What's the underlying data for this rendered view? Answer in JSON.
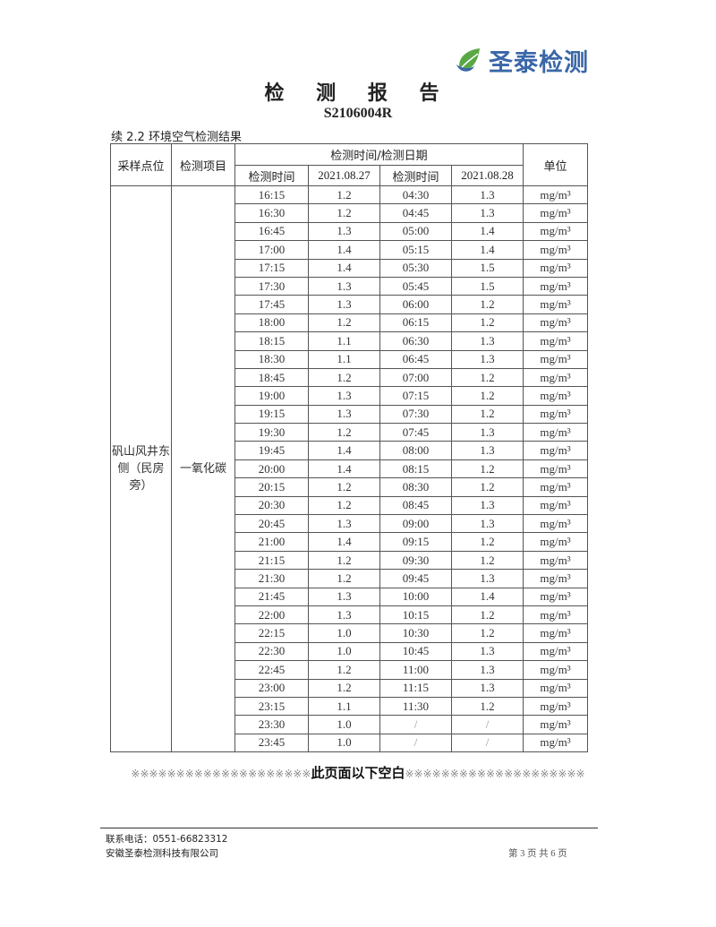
{
  "header": {
    "logo_text": "圣泰检测",
    "title": "检 测 报 告",
    "report_code": "S2106004R",
    "caption": "续 2.2 环境空气检测结果"
  },
  "table": {
    "headers": {
      "location": "采样点位",
      "item": "检测项目",
      "group": "检测时间/检测日期",
      "unit": "单位",
      "time1": "检测时间",
      "date1": "2021.08.27",
      "time2": "检测时间",
      "date2": "2021.08.28"
    },
    "location": "矾山风井东侧（民房旁）",
    "item": "一氧化碳",
    "unit": "mg/m³",
    "rows": [
      [
        "16:15",
        "1.2",
        "04:30",
        "1.3"
      ],
      [
        "16:30",
        "1.2",
        "04:45",
        "1.3"
      ],
      [
        "16:45",
        "1.3",
        "05:00",
        "1.4"
      ],
      [
        "17:00",
        "1.4",
        "05:15",
        "1.4"
      ],
      [
        "17:15",
        "1.4",
        "05:30",
        "1.5"
      ],
      [
        "17:30",
        "1.3",
        "05:45",
        "1.5"
      ],
      [
        "17:45",
        "1.3",
        "06:00",
        "1.2"
      ],
      [
        "18:00",
        "1.2",
        "06:15",
        "1.2"
      ],
      [
        "18:15",
        "1.1",
        "06:30",
        "1.3"
      ],
      [
        "18:30",
        "1.1",
        "06:45",
        "1.3"
      ],
      [
        "18:45",
        "1.2",
        "07:00",
        "1.2"
      ],
      [
        "19:00",
        "1.3",
        "07:15",
        "1.2"
      ],
      [
        "19:15",
        "1.3",
        "07:30",
        "1.2"
      ],
      [
        "19:30",
        "1.2",
        "07:45",
        "1.3"
      ],
      [
        "19:45",
        "1.4",
        "08:00",
        "1.3"
      ],
      [
        "20:00",
        "1.4",
        "08:15",
        "1.2"
      ],
      [
        "20:15",
        "1.2",
        "08:30",
        "1.2"
      ],
      [
        "20:30",
        "1.2",
        "08:45",
        "1.3"
      ],
      [
        "20:45",
        "1.3",
        "09:00",
        "1.3"
      ],
      [
        "21:00",
        "1.4",
        "09:15",
        "1.2"
      ],
      [
        "21:15",
        "1.2",
        "09:30",
        "1.2"
      ],
      [
        "21:30",
        "1.2",
        "09:45",
        "1.3"
      ],
      [
        "21:45",
        "1.3",
        "10:00",
        "1.4"
      ],
      [
        "22:00",
        "1.3",
        "10:15",
        "1.2"
      ],
      [
        "22:15",
        "1.0",
        "10:30",
        "1.2"
      ],
      [
        "22:30",
        "1.0",
        "10:45",
        "1.3"
      ],
      [
        "22:45",
        "1.2",
        "11:00",
        "1.3"
      ],
      [
        "23:00",
        "1.2",
        "11:15",
        "1.3"
      ],
      [
        "23:15",
        "1.1",
        "11:30",
        "1.2"
      ],
      [
        "23:30",
        "1.0",
        "/",
        "/"
      ],
      [
        "23:45",
        "1.0",
        "/",
        "/"
      ]
    ]
  },
  "blank_notice": {
    "marks_left": "※※※※※※※※※※※※※※※※※※※※",
    "text": "此页面以下空白",
    "marks_right": "※※※※※※※※※※※※※※※※※※※※"
  },
  "footer": {
    "phone": "联系电话：0551-66823312",
    "company": "安徽圣泰检测科技有限公司",
    "page": "第 3 页 共 6 页"
  }
}
